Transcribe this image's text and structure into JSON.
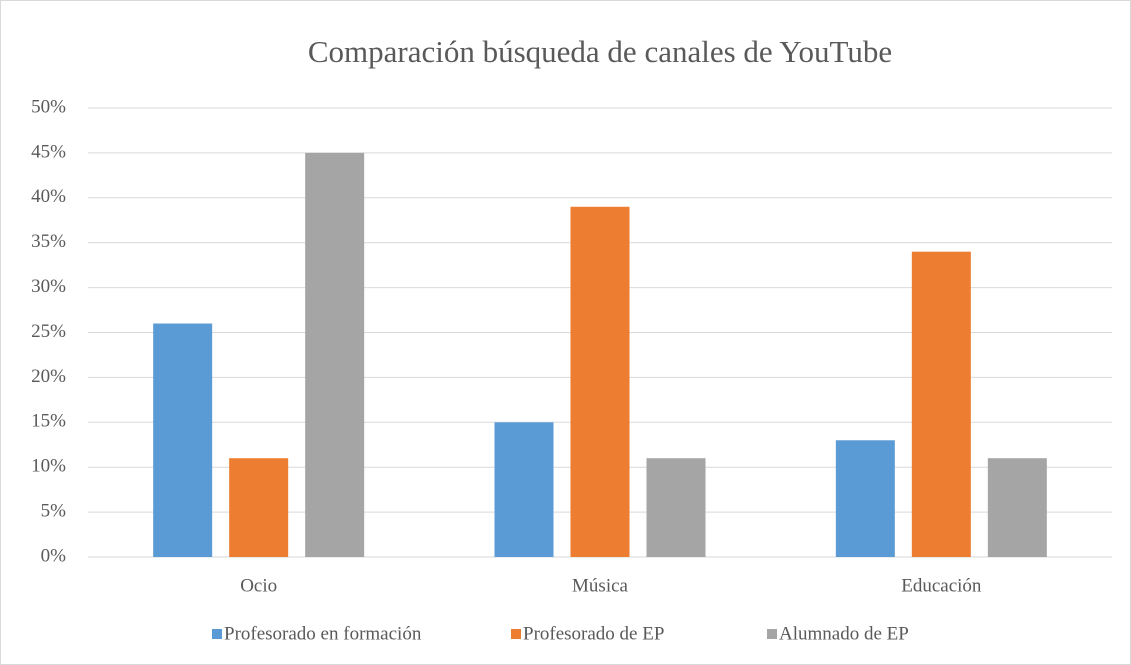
{
  "chart_data": {
    "type": "bar",
    "title": "Comparación búsqueda de canales de YouTube",
    "categories": [
      "Ocio",
      "Música",
      "Educación"
    ],
    "series": [
      {
        "name": "Profesorado en formación",
        "color": "#5b9bd5",
        "values": [
          26,
          15,
          13
        ]
      },
      {
        "name": "Profesorado de EP",
        "color": "#ed7d31",
        "values": [
          11,
          39,
          34
        ]
      },
      {
        "name": "Alumnado de EP",
        "color": "#a5a5a5",
        "values": [
          45,
          11,
          11
        ]
      }
    ],
    "ylim": [
      0,
      50
    ],
    "yticks": [
      {
        "value": 0,
        "label": "0%"
      },
      {
        "value": 5,
        "label": "5%"
      },
      {
        "value": 10,
        "label": "10%"
      },
      {
        "value": 15,
        "label": "15%"
      },
      {
        "value": 20,
        "label": "20%"
      },
      {
        "value": 25,
        "label": "25%"
      },
      {
        "value": 30,
        "label": "30%"
      },
      {
        "value": 35,
        "label": "35%"
      },
      {
        "value": 40,
        "label": "40%"
      },
      {
        "value": 45,
        "label": "45%"
      },
      {
        "value": 50,
        "label": "50%"
      }
    ],
    "grid": true,
    "legend": "bottom"
  }
}
